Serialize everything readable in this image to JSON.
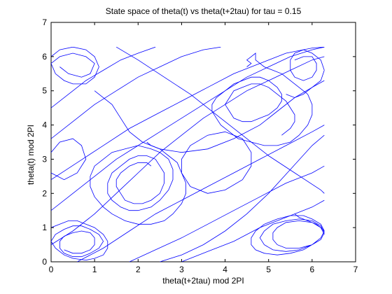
{
  "chart_data": {
    "type": "line",
    "title": "State space of theta(t) vs theta(t+2tau) for tau = 0.15",
    "xlabel": "theta(t+2tau) mod 2PI",
    "ylabel": "theta(t) mod 2PI",
    "xlim": [
      0,
      7
    ],
    "ylim": [
      0,
      7
    ],
    "xticks": [
      "0",
      "1",
      "2",
      "3",
      "4",
      "5",
      "6",
      "7"
    ],
    "yticks": [
      "0",
      "1",
      "2",
      "3",
      "4",
      "5",
      "6",
      "7"
    ],
    "data_range": [
      0,
      6.283
    ],
    "grid": false,
    "legend": "none",
    "series": [
      {
        "color": "#0000ff",
        "x": [
          4.5,
          4.6,
          4.5,
          4.6,
          4.7,
          4.7,
          4.7,
          4.8,
          4.9,
          5.1,
          5.3,
          5.5,
          5.7,
          5.9,
          6.0,
          6.0,
          5.9,
          5.7,
          5.5,
          5.2,
          4.9,
          4.6,
          4.3,
          4.1,
          3.9,
          3.8,
          3.7,
          3.7,
          3.8,
          4.0,
          4.2,
          4.4,
          4.6,
          4.8,
          5.0,
          5.2,
          5.3,
          5.3,
          5.2,
          5.0,
          4.8,
          4.6,
          4.4,
          4.2,
          4.1,
          4.0,
          4.1,
          4.2,
          4.4,
          4.6,
          4.8,
          5.0,
          5.2,
          5.4,
          5.5,
          5.6,
          5.6,
          5.5,
          5.4,
          5.3
        ],
        "y": [
          5.7,
          5.8,
          5.9,
          6.0,
          6.1,
          6.0,
          5.9,
          5.8,
          5.7,
          5.6,
          5.5,
          5.3,
          5.1,
          4.9,
          4.6,
          4.3,
          4.0,
          3.7,
          3.5,
          3.4,
          3.4,
          3.5,
          3.6,
          3.8,
          4.0,
          4.2,
          4.4,
          4.6,
          4.8,
          5.0,
          5.2,
          5.3,
          5.4,
          5.4,
          5.3,
          5.1,
          4.9,
          4.7,
          4.5,
          4.3,
          4.2,
          4.1,
          4.1,
          4.2,
          4.4,
          4.6,
          4.8,
          5.0,
          5.1,
          5.2,
          5.2,
          5.1,
          4.9,
          4.7,
          4.5,
          4.3,
          4.1,
          3.9,
          3.8,
          3.7
        ]
      },
      {
        "color": "#0000ff",
        "x": [
          2.2,
          2.3,
          2.5,
          2.7,
          2.9,
          3.0,
          3.1,
          3.1,
          3.0,
          2.8,
          2.6,
          2.3,
          2.0,
          1.7,
          1.4,
          1.2,
          1.0,
          0.9,
          0.9,
          1.0,
          1.2,
          1.4,
          1.7,
          2.0,
          2.3,
          2.5,
          2.7,
          2.8,
          2.8,
          2.7,
          2.5,
          2.3,
          2.0,
          1.8,
          1.6,
          1.4,
          1.3,
          1.3,
          1.4,
          1.6,
          1.8,
          2.0,
          2.2,
          2.4,
          2.5,
          2.6,
          2.6,
          2.5,
          2.3,
          2.1,
          1.9,
          1.7,
          1.6,
          1.5,
          1.5,
          1.6,
          1.8,
          2.0,
          2.2,
          2.3
        ],
        "y": [
          3.5,
          3.4,
          3.3,
          3.1,
          2.9,
          2.6,
          2.3,
          2.0,
          1.7,
          1.4,
          1.2,
          1.1,
          1.1,
          1.2,
          1.4,
          1.6,
          1.9,
          2.2,
          2.5,
          2.8,
          3.0,
          3.2,
          3.3,
          3.4,
          3.3,
          3.2,
          3.0,
          2.7,
          2.4,
          2.1,
          1.8,
          1.6,
          1.5,
          1.5,
          1.6,
          1.8,
          2.0,
          2.3,
          2.6,
          2.8,
          3.0,
          3.1,
          3.1,
          3.0,
          2.8,
          2.6,
          2.3,
          2.0,
          1.8,
          1.7,
          1.7,
          1.8,
          2.0,
          2.2,
          2.4,
          2.6,
          2.8,
          2.9,
          2.9,
          2.8
        ]
      },
      {
        "color": "#0000ff",
        "x": [
          5.6,
          5.7,
          5.9,
          6.1,
          6.2,
          6.28,
          6.2,
          6.0,
          5.8,
          5.5,
          5.2,
          4.9,
          4.7,
          4.6,
          4.6,
          4.7,
          4.9,
          5.2,
          5.5,
          5.8,
          6.0,
          6.2,
          6.28,
          6.2,
          6.0,
          5.7,
          5.4,
          5.1,
          4.9,
          4.8,
          4.9,
          5.1,
          5.4,
          5.7,
          6.0,
          6.2,
          6.28,
          6.2,
          6.0,
          5.7,
          5.4,
          5.2,
          5.1,
          5.1,
          5.2,
          5.4,
          5.7,
          6.0,
          6.2,
          6.28
        ],
        "y": [
          1.4,
          1.3,
          1.2,
          1.1,
          1.0,
          0.9,
          0.7,
          0.5,
          0.35,
          0.25,
          0.2,
          0.25,
          0.35,
          0.5,
          0.7,
          0.9,
          1.1,
          1.25,
          1.35,
          1.35,
          1.25,
          1.1,
          0.9,
          0.7,
          0.5,
          0.35,
          0.3,
          0.35,
          0.5,
          0.7,
          0.9,
          1.1,
          1.2,
          1.25,
          1.2,
          1.05,
          0.85,
          0.65,
          0.5,
          0.4,
          0.4,
          0.5,
          0.65,
          0.85,
          1.0,
          1.15,
          1.2,
          1.15,
          1.0,
          0.8
        ]
      },
      {
        "color": "#0000ff",
        "x": [
          0.0,
          0.2,
          0.4,
          0.6,
          0.8,
          1.0,
          1.2,
          1.3,
          1.3,
          1.2,
          1.0,
          0.8,
          0.5,
          0.3,
          0.1,
          0.0,
          0.1,
          0.3,
          0.5,
          0.7,
          0.9,
          1.1,
          1.2,
          1.1,
          0.9,
          0.7,
          0.5,
          0.3,
          0.2,
          0.2,
          0.3,
          0.5,
          0.7,
          0.9,
          1.0,
          1.0,
          0.9,
          0.7,
          0.5,
          0.3
        ],
        "y": [
          1.0,
          1.1,
          1.2,
          1.2,
          1.1,
          1.0,
          0.8,
          0.6,
          0.4,
          0.2,
          0.1,
          0.05,
          0.1,
          0.2,
          0.4,
          0.6,
          0.8,
          0.95,
          1.05,
          1.05,
          0.95,
          0.8,
          0.6,
          0.4,
          0.25,
          0.15,
          0.15,
          0.25,
          0.4,
          0.6,
          0.75,
          0.85,
          0.9,
          0.85,
          0.7,
          0.5,
          0.35,
          0.25,
          0.25,
          0.35
        ]
      },
      {
        "color": "#0000ff",
        "x": [
          0.0,
          0.2,
          0.5,
          0.8,
          1.0,
          1.1,
          1.0,
          0.8,
          0.5,
          0.3,
          0.1,
          0.0,
          0.2,
          0.5,
          0.8,
          1.0,
          0.9,
          0.7,
          0.4,
          0.2
        ],
        "y": [
          6.0,
          6.2,
          6.28,
          6.2,
          6.0,
          5.7,
          5.4,
          5.2,
          5.2,
          5.3,
          5.5,
          5.8,
          6.0,
          6.1,
          6.0,
          5.8,
          5.5,
          5.4,
          5.5,
          5.7
        ]
      },
      {
        "color": "#0000ff",
        "x": [
          5.4,
          5.6,
          5.8,
          6.0,
          6.2,
          6.28,
          6.2,
          6.0,
          5.8,
          5.6,
          5.5,
          5.5,
          5.6,
          5.8,
          6.0,
          6.1,
          6.1,
          6.0,
          5.8,
          5.6
        ],
        "y": [
          4.9,
          4.8,
          4.9,
          5.1,
          5.3,
          5.6,
          5.9,
          6.1,
          6.2,
          6.1,
          5.9,
          5.6,
          5.4,
          5.3,
          5.4,
          5.6,
          5.8,
          6.0,
          6.0,
          5.9
        ]
      },
      {
        "color": "#0000ff",
        "x": [
          0.0,
          0.5,
          1.0,
          1.5,
          2.0,
          2.5,
          3.0,
          3.5,
          4.0,
          4.5,
          5.0,
          5.5,
          6.0,
          6.28
        ],
        "y": [
          1.5,
          2.0,
          2.5,
          3.0,
          3.4,
          3.8,
          4.2,
          4.6,
          5.0,
          5.4,
          5.7,
          6.0,
          6.2,
          6.28
        ]
      },
      {
        "color": "#0000ff",
        "x": [
          0.0,
          0.6,
          1.2,
          1.8,
          2.4,
          3.0,
          3.6,
          4.2,
          4.8,
          5.4,
          6.0,
          6.28
        ],
        "y": [
          2.4,
          2.9,
          3.4,
          3.9,
          4.3,
          4.7,
          5.1,
          5.5,
          5.8,
          6.1,
          6.25,
          6.28
        ]
      },
      {
        "color": "#0000ff",
        "x": [
          0.0,
          0.5,
          1.0,
          1.5,
          2.0,
          2.5,
          3.0,
          3.5,
          3.9
        ],
        "y": [
          3.6,
          4.1,
          4.6,
          5.0,
          5.4,
          5.7,
          6.0,
          6.2,
          6.28
        ]
      },
      {
        "color": "#0000ff",
        "x": [
          0.0,
          0.4,
          0.8,
          1.2,
          1.6,
          2.0,
          2.4
        ],
        "y": [
          4.5,
          4.9,
          5.3,
          5.6,
          5.9,
          6.1,
          6.28
        ]
      },
      {
        "color": "#0000ff",
        "x": [
          0.6,
          1.2,
          1.8,
          2.4,
          3.0,
          3.6,
          4.2,
          4.8,
          5.4,
          6.0,
          6.28
        ],
        "y": [
          0.0,
          0.4,
          0.9,
          1.4,
          1.8,
          2.2,
          2.6,
          3.0,
          3.4,
          3.8,
          4.0
        ]
      },
      {
        "color": "#0000ff",
        "x": [
          1.8,
          2.4,
          3.0,
          3.6,
          4.2,
          4.8,
          5.4,
          6.0,
          6.28
        ],
        "y": [
          0.0,
          0.35,
          0.7,
          1.1,
          1.5,
          1.9,
          2.3,
          2.6,
          2.8
        ]
      },
      {
        "color": "#0000ff",
        "x": [
          3.0,
          3.6,
          4.2,
          4.8,
          5.4,
          6.0,
          6.28
        ],
        "y": [
          0.0,
          0.3,
          0.6,
          1.0,
          1.3,
          1.6,
          1.8
        ]
      },
      {
        "color": "#0000ff",
        "x": [
          1.0,
          1.4,
          1.6,
          1.8,
          2.1,
          2.5,
          3.0,
          3.6,
          4.2,
          4.8,
          5.2,
          5.6,
          6.0,
          6.28
        ],
        "y": [
          5.0,
          4.6,
          4.2,
          3.8,
          3.5,
          3.3,
          3.2,
          3.3,
          3.6,
          4.0,
          4.4,
          4.8,
          5.1,
          5.3
        ]
      },
      {
        "color": "#0000ff",
        "x": [
          0.0,
          0.5,
          1.0,
          1.5,
          2.0,
          2.5,
          3.0,
          3.5,
          4.0,
          4.5,
          5.0,
          5.5,
          6.0,
          6.28
        ],
        "y": [
          0.5,
          0.9,
          1.4,
          2.0,
          2.6,
          3.2,
          3.7,
          4.2,
          4.6,
          5.0,
          5.3,
          5.6,
          5.9,
          6.0
        ]
      },
      {
        "color": "#0000ff",
        "x": [
          3.2,
          3.6,
          4.0,
          4.4,
          4.6,
          4.6,
          4.4,
          4.0,
          3.6,
          3.2,
          3.0,
          3.0,
          3.2
        ],
        "y": [
          2.2,
          2.0,
          2.1,
          2.4,
          2.8,
          3.2,
          3.6,
          3.8,
          3.7,
          3.4,
          3.0,
          2.6,
          2.2
        ]
      },
      {
        "color": "#0000ff",
        "x": [
          0.0,
          0.3,
          0.6,
          0.8,
          0.7,
          0.5,
          0.2,
          0.0
        ],
        "y": [
          2.6,
          2.4,
          2.6,
          3.0,
          3.4,
          3.6,
          3.5,
          3.2
        ]
      },
      {
        "color": "#0000ff",
        "x": [
          1.5,
          2.0,
          2.6,
          3.2,
          3.8,
          4.4,
          5.0,
          5.6,
          6.2,
          6.28
        ],
        "y": [
          6.28,
          5.9,
          5.4,
          4.9,
          4.3,
          3.7,
          3.1,
          2.6,
          2.1,
          2.0
        ]
      },
      {
        "color": "#0000ff",
        "x": [
          2.5,
          3.0,
          3.5,
          4.0,
          4.5,
          5.0,
          5.5,
          6.0,
          6.28
        ],
        "y": [
          0.0,
          0.2,
          0.5,
          0.9,
          1.4,
          2.0,
          2.7,
          3.4,
          3.7
        ]
      }
    ]
  }
}
